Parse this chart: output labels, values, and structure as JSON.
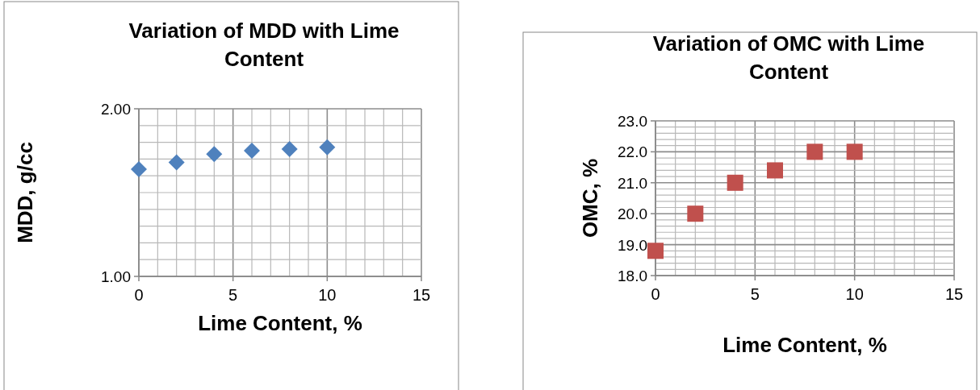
{
  "chart_data": [
    {
      "type": "scatter",
      "title": "Variation of MDD with Lime Content",
      "xlabel": "Lime Content, %",
      "ylabel": "MDD, g/cc",
      "x": [
        0,
        2,
        4,
        6,
        8,
        10
      ],
      "series": [
        {
          "color": "#4f81bd",
          "values": [
            1.64,
            1.68,
            1.73,
            1.75,
            1.76,
            1.77
          ]
        }
      ],
      "marker": "diamond",
      "grid": true,
      "xlim": [
        0,
        15
      ],
      "ylim": [
        1,
        2
      ],
      "xticks": [
        0,
        {
          "value": 1,
          "label": null
        },
        {
          "value": 2,
          "label": null
        },
        {
          "value": 3,
          "label": null
        },
        {
          "value": 4,
          "label": null
        },
        5,
        {
          "value": 6,
          "label": null
        },
        {
          "value": 7,
          "label": null
        },
        {
          "value": 8,
          "label": null
        },
        {
          "value": 9,
          "label": null
        },
        10,
        {
          "value": 11,
          "label": null
        },
        {
          "value": 12,
          "label": null
        },
        {
          "value": 13,
          "label": null
        },
        {
          "value": 14,
          "label": null
        },
        15
      ],
      "yticks": [
        {
          "value": 1,
          "label": "1.00"
        },
        {
          "value": 1.1,
          "label": null
        },
        {
          "value": 1.2,
          "label": null
        },
        {
          "value": 1.3,
          "label": null
        },
        {
          "value": 1.4,
          "label": null
        },
        {
          "value": 1.5,
          "label": null
        },
        {
          "value": 1.6,
          "label": null
        },
        {
          "value": 1.7,
          "label": null
        },
        {
          "value": 1.8,
          "label": null
        },
        {
          "value": 1.9,
          "label": null
        },
        {
          "value": 2,
          "label": "2.00"
        }
      ]
    },
    {
      "type": "scatter",
      "title": "Variation of OMC with Lime Content",
      "xlabel": "Lime Content, %",
      "ylabel": "OMC, %",
      "x": [
        0,
        2,
        4,
        6,
        8,
        10
      ],
      "series": [
        {
          "color": "#c0504d",
          "values": [
            18.8,
            20.0,
            21.0,
            21.4,
            22.0,
            22.0
          ]
        }
      ],
      "marker": "square",
      "grid": true,
      "xlim": [
        0,
        15
      ],
      "ylim": [
        18,
        23
      ],
      "xticks": [
        0,
        {
          "value": 1,
          "label": null
        },
        {
          "value": 2,
          "label": null
        },
        {
          "value": 3,
          "label": null
        },
        {
          "value": 4,
          "label": null
        },
        5,
        {
          "value": 6,
          "label": null
        },
        {
          "value": 7,
          "label": null
        },
        {
          "value": 8,
          "label": null
        },
        {
          "value": 9,
          "label": null
        },
        10,
        {
          "value": 11,
          "label": null
        },
        {
          "value": 12,
          "label": null
        },
        {
          "value": 13,
          "label": null
        },
        {
          "value": 14,
          "label": null
        },
        15
      ],
      "yticks": [
        {
          "value": 18,
          "label": "18.0"
        },
        {
          "value": 18.2,
          "label": null
        },
        {
          "value": 18.4,
          "label": null
        },
        {
          "value": 18.6,
          "label": null
        },
        {
          "value": 18.8,
          "label": null
        },
        {
          "value": 19,
          "label": "19.0"
        },
        {
          "value": 19.2,
          "label": null
        },
        {
          "value": 19.4,
          "label": null
        },
        {
          "value": 19.6,
          "label": null
        },
        {
          "value": 19.8,
          "label": null
        },
        {
          "value": 20,
          "label": "20.0"
        },
        {
          "value": 20.2,
          "label": null
        },
        {
          "value": 20.4,
          "label": null
        },
        {
          "value": 20.6,
          "label": null
        },
        {
          "value": 20.8,
          "label": null
        },
        {
          "value": 21,
          "label": "21.0"
        },
        {
          "value": 21.2,
          "label": null
        },
        {
          "value": 21.4,
          "label": null
        },
        {
          "value": 21.6,
          "label": null
        },
        {
          "value": 21.8,
          "label": null
        },
        {
          "value": 22,
          "label": "22.0"
        },
        {
          "value": 22.2,
          "label": null
        },
        {
          "value": 22.4,
          "label": null
        },
        {
          "value": 22.6,
          "label": null
        },
        {
          "value": 22.8,
          "label": null
        },
        {
          "value": 23,
          "label": "23.0"
        }
      ]
    }
  ]
}
